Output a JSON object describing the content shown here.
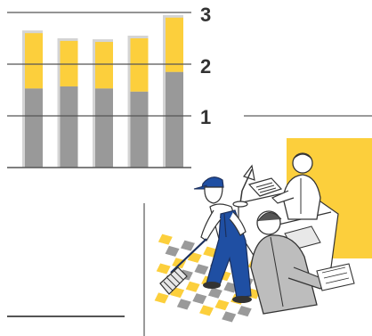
{
  "colors": {
    "background": "#ffffff",
    "bar_bottom": "#999999",
    "bar_top": "#fccf3c",
    "bar_shadow": "#d4d4d4",
    "gridline": "#555555",
    "text": "#333333",
    "accent_line": "#9a9a9a",
    "illustration_yellow": "#fccf3c",
    "illustration_gray": "#9a9a9a",
    "uniform_blue": "#1f4fa3"
  },
  "chart_data": {
    "type": "bar",
    "stacked": true,
    "categories": [
      "",
      "",
      "",
      "",
      ""
    ],
    "series": [
      {
        "values": [
          1.53,
          1.57,
          1.53,
          1.47,
          1.85
        ]
      },
      {
        "values": [
          1.07,
          0.88,
          0.9,
          1.03,
          1.05
        ]
      }
    ],
    "ylim": [
      0,
      3
    ],
    "yticks": [
      "1",
      "2",
      "3"
    ],
    "grid": true,
    "legend": "none",
    "title": "",
    "xlabel": "",
    "ylabel": ""
  },
  "illustration": {
    "subject": "office-cleaning-scene",
    "icons": [
      "janitor-icon",
      "office-worker-icon",
      "desk-lamp-icon",
      "typewriter-icon",
      "mop-icon"
    ]
  }
}
